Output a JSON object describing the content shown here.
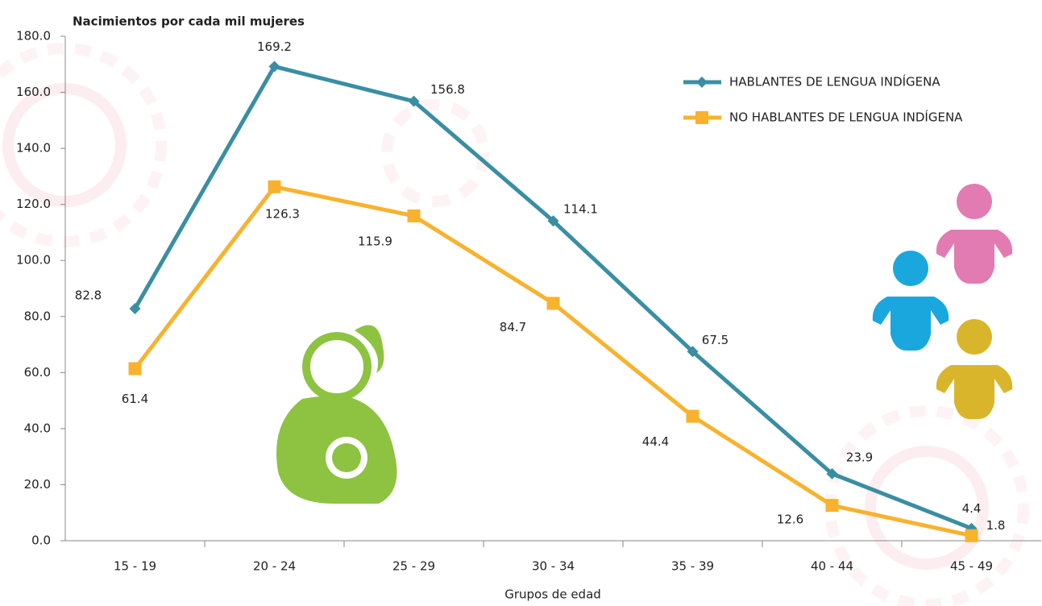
{
  "chart_data": {
    "type": "line",
    "y_axis_label": "Nacimientos por cada mil mujeres",
    "x_axis_label": "Grupos de edad",
    "categories": [
      "15 - 19",
      "20 - 24",
      "25 - 29",
      "30 - 34",
      "35 - 39",
      "40 - 44",
      "45 - 49"
    ],
    "series": [
      {
        "name": "HABLANTES DE LENGUA INDÍGENA",
        "color": "#3a8ea3",
        "marker": "diamond",
        "values": [
          82.8,
          169.2,
          156.8,
          114.1,
          67.5,
          23.9,
          4.4
        ]
      },
      {
        "name": "NO HABLANTES DE LENGUA INDÍGENA",
        "color": "#f8b22e",
        "marker": "square",
        "values": [
          61.4,
          126.3,
          115.9,
          84.7,
          44.4,
          12.6,
          1.8
        ]
      }
    ],
    "ylim": [
      0,
      180
    ],
    "yticks": [
      {
        "value": 0,
        "label": "0.0"
      },
      {
        "value": 20,
        "label": "20.0"
      },
      {
        "value": 40,
        "label": "40.0"
      },
      {
        "value": 60,
        "label": "60.0"
      },
      {
        "value": 80,
        "label": "80.0"
      },
      {
        "value": 100,
        "label": "100.0"
      },
      {
        "value": 120,
        "label": "120.0"
      },
      {
        "value": 140,
        "label": "140.0"
      },
      {
        "value": 160,
        "label": "160.0"
      },
      {
        "value": 180,
        "label": "180.0"
      }
    ],
    "grid": false,
    "legend": "top-right"
  }
}
